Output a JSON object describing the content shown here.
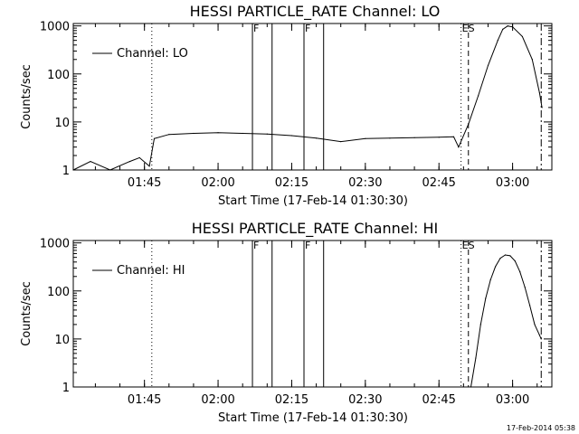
{
  "footer": {
    "timestamp": "17-Feb-2014 05:38"
  },
  "chart_data": [
    {
      "type": "line",
      "title": "HESSI PARTICLE_RATE Channel: LO",
      "xlabel": "Start Time (17-Feb-14 01:30:30)",
      "ylabel": "Counts/sec",
      "yscale": "log",
      "ylim": [
        1,
        1000
      ],
      "xlim": [
        "01:30:30",
        "03:08:00"
      ],
      "x_tick_labels": [
        "01:45",
        "02:00",
        "02:15",
        "02:30",
        "02:45",
        "03:00"
      ],
      "y_tick_labels": [
        "1",
        "10",
        "100",
        "1000"
      ],
      "grid": false,
      "legend": {
        "position": "top-left",
        "entries": [
          "Channel: LO"
        ]
      },
      "series": [
        {
          "name": "Channel: LO",
          "x": [
            "01:30:30",
            "01:34:00",
            "01:38:00",
            "01:42:00",
            "01:44:00",
            "01:46:00",
            "01:47:00",
            "01:50:00",
            "01:55:00",
            "02:00:00",
            "02:05:00",
            "02:10:00",
            "02:15:00",
            "02:20:00",
            "02:25:00",
            "02:30:00",
            "02:35:00",
            "02:40:00",
            "02:45:00",
            "02:48:00",
            "02:49:00",
            "02:51:00",
            "02:53:00",
            "02:55:00",
            "02:57:00",
            "02:58:00",
            "02:59:00",
            "03:00:00",
            "03:02:00",
            "03:04:00",
            "03:05:30",
            "03:06:00"
          ],
          "values": [
            1,
            1.5,
            1,
            1.5,
            1.8,
            1.2,
            4.5,
            5.5,
            5.8,
            6,
            5.8,
            5.6,
            5.2,
            4.6,
            3.9,
            4.5,
            4.6,
            4.7,
            4.8,
            4.9,
            3,
            9,
            35,
            150,
            500,
            850,
            1000,
            950,
            600,
            200,
            40,
            20
          ]
        }
      ],
      "markers": [
        {
          "x": "01:46:30",
          "style": "dotted"
        },
        {
          "x": "02:07:00",
          "style": "solid",
          "label": "F"
        },
        {
          "x": "02:11:00",
          "style": "solid"
        },
        {
          "x": "02:17:30",
          "style": "solid",
          "label": "F"
        },
        {
          "x": "02:21:30",
          "style": "solid"
        },
        {
          "x": "02:49:30",
          "style": "dotted",
          "label": "ES"
        },
        {
          "x": "02:51:00",
          "style": "dashed"
        },
        {
          "x": "03:05:50",
          "style": "dashdot"
        }
      ]
    },
    {
      "type": "line",
      "title": "HESSI PARTICLE_RATE Channel: HI",
      "xlabel": "Start Time (17-Feb-14 01:30:30)",
      "ylabel": "Counts/sec",
      "yscale": "log",
      "ylim": [
        1,
        1000
      ],
      "xlim": [
        "01:30:30",
        "03:08:00"
      ],
      "x_tick_labels": [
        "01:45",
        "02:00",
        "02:15",
        "02:30",
        "02:45",
        "03:00"
      ],
      "y_tick_labels": [
        "1",
        "10",
        "100",
        "1000"
      ],
      "grid": false,
      "legend": {
        "position": "top-left",
        "entries": [
          "Channel: HI"
        ]
      },
      "series": [
        {
          "name": "Channel: HI",
          "x": [
            "02:51:30",
            "02:52:30",
            "02:53:30",
            "02:54:30",
            "02:55:30",
            "02:56:30",
            "02:57:30",
            "02:58:30",
            "02:59:30",
            "03:00:30",
            "03:01:30",
            "03:02:30",
            "03:03:30",
            "03:04:30",
            "03:05:30",
            "03:05:50"
          ],
          "values": [
            1,
            4,
            20,
            70,
            170,
            320,
            480,
            560,
            540,
            420,
            250,
            120,
            50,
            20,
            12,
            10
          ]
        }
      ],
      "markers": [
        {
          "x": "01:46:30",
          "style": "dotted"
        },
        {
          "x": "02:07:00",
          "style": "solid",
          "label": "F"
        },
        {
          "x": "02:11:00",
          "style": "solid"
        },
        {
          "x": "02:17:30",
          "style": "solid",
          "label": "F"
        },
        {
          "x": "02:21:30",
          "style": "solid"
        },
        {
          "x": "02:49:30",
          "style": "dotted",
          "label": "ES"
        },
        {
          "x": "02:51:00",
          "style": "dashed"
        },
        {
          "x": "03:05:50",
          "style": "dashdot"
        }
      ]
    }
  ]
}
